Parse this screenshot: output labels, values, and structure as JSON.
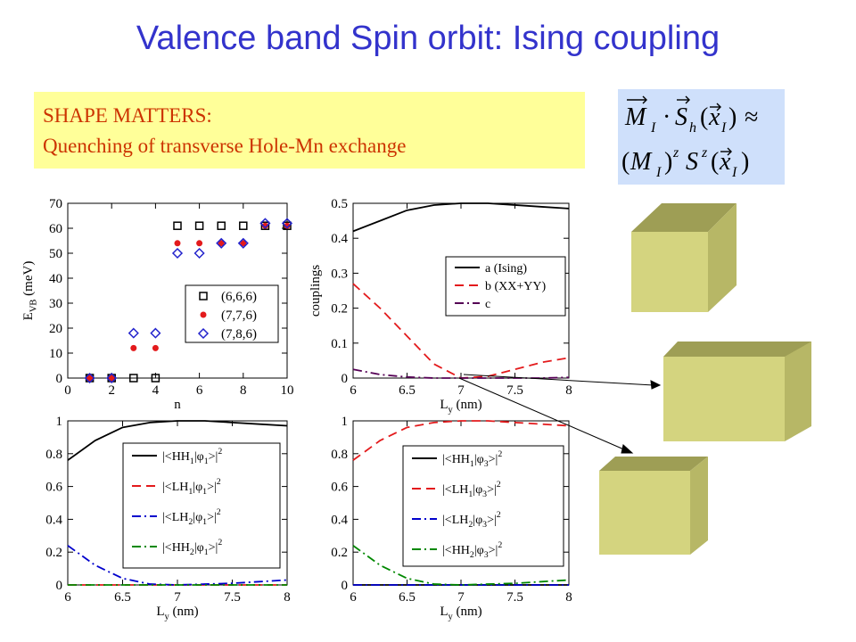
{
  "title": "Valence band Spin orbit: Ising coupling",
  "note": {
    "line1": "SHAPE MATTERS:",
    "line2": "Quenching of transverse Hole-Mn exchange"
  },
  "formula": {
    "line1": "M_I · S_h(x_I) ≈",
    "line2": "(M_I)^z S^z(x_I)"
  },
  "colors": {
    "title": "#3333cc",
    "note_text": "#cc3300",
    "note_bg": "#ffff99",
    "formula_bg": "#cfe0fb",
    "cube": "#d4d47f"
  },
  "chart_data": [
    {
      "type": "scatter",
      "xlabel": "n",
      "ylabel": "E_VB (meV)",
      "xlim": [
        0,
        10
      ],
      "ylim": [
        0,
        70
      ],
      "xticks": [
        0,
        2,
        4,
        6,
        8,
        10
      ],
      "yticks": [
        0,
        10,
        20,
        30,
        40,
        50,
        60,
        70
      ],
      "legend_position": "lower-right",
      "series": [
        {
          "name": "(6,6,6)",
          "marker": "open-square",
          "color": "#000000",
          "x": [
            1,
            2,
            3,
            4,
            5,
            6,
            7,
            8,
            9,
            10
          ],
          "y": [
            0,
            0,
            0,
            0,
            61,
            61,
            61,
            61,
            61,
            61
          ]
        },
        {
          "name": "(7,7,6)",
          "marker": "filled-circle",
          "color": "#e31a1c",
          "x": [
            1,
            2,
            3,
            4,
            5,
            6,
            7,
            8,
            9,
            10
          ],
          "y": [
            0,
            0,
            12,
            12,
            54,
            54,
            54,
            54,
            61,
            61
          ]
        },
        {
          "name": "(7,8,6)",
          "marker": "open-diamond",
          "color": "#2222cc",
          "x": [
            1,
            2,
            3,
            4,
            5,
            6,
            7,
            8,
            9,
            10
          ],
          "y": [
            0,
            0,
            18,
            18,
            50,
            50,
            54,
            54,
            62,
            62
          ]
        }
      ]
    },
    {
      "type": "line",
      "xlabel": "L_y (nm)",
      "ylabel": "couplings",
      "xlim": [
        6,
        8
      ],
      "ylim": [
        0,
        0.5
      ],
      "xticks": [
        6,
        6.5,
        7,
        7.5,
        8
      ],
      "yticks": [
        0,
        0.1,
        0.2,
        0.3,
        0.4,
        0.5
      ],
      "legend_position": "middle-right",
      "x": [
        6,
        6.25,
        6.5,
        6.75,
        7,
        7.25,
        7.5,
        7.75,
        8
      ],
      "series": [
        {
          "name": "a (Ising)",
          "style": "solid",
          "color": "#000000",
          "values": [
            0.42,
            0.45,
            0.48,
            0.495,
            0.5,
            0.5,
            0.495,
            0.49,
            0.485
          ]
        },
        {
          "name": "b (XX+YY)",
          "style": "dashed",
          "color": "#e31a1c",
          "values": [
            0.27,
            0.2,
            0.12,
            0.04,
            0.0,
            0.005,
            0.025,
            0.045,
            0.058
          ]
        },
        {
          "name": "c",
          "style": "dash-dot",
          "color": "#550055",
          "values": [
            0.025,
            0.01,
            0.003,
            0.0,
            0.0,
            0.0,
            0.0,
            0.0,
            0.002
          ]
        }
      ]
    },
    {
      "type": "line",
      "xlabel": "L_y (nm)",
      "ylabel": "",
      "xlim": [
        6,
        8
      ],
      "ylim": [
        0,
        1
      ],
      "xticks": [
        6,
        6.5,
        7,
        7.5,
        8
      ],
      "yticks": [
        0,
        0.2,
        0.4,
        0.6,
        0.8,
        1
      ],
      "legend_position": "right",
      "x": [
        6,
        6.25,
        6.5,
        6.75,
        7,
        7.25,
        7.5,
        7.75,
        8
      ],
      "series": [
        {
          "name": "|<HH1|φ1>|²",
          "style": "solid",
          "color": "#000000",
          "values": [
            0.76,
            0.88,
            0.96,
            0.99,
            1.0,
            1.0,
            0.99,
            0.98,
            0.97
          ]
        },
        {
          "name": "|<LH1|φ1>|²",
          "style": "dashed",
          "color": "#e31a1c",
          "values": [
            0.0,
            0.0,
            0.0,
            0.0,
            0.0,
            0.0,
            0.0,
            0.0,
            0.0
          ]
        },
        {
          "name": "|<LH2|φ1>|²",
          "style": "dash-dot",
          "color": "#0000cc",
          "values": [
            0.24,
            0.12,
            0.04,
            0.005,
            0.0,
            0.005,
            0.01,
            0.02,
            0.03
          ]
        },
        {
          "name": "|<HH2|φ1>|²",
          "style": "dash-dot",
          "color": "#008800",
          "values": [
            0.0,
            0.0,
            0.0,
            0.0,
            0.0,
            0.0,
            0.0,
            0.0,
            0.0
          ]
        }
      ]
    },
    {
      "type": "line",
      "xlabel": "L_y (nm)",
      "ylabel": "",
      "xlim": [
        6,
        8
      ],
      "ylim": [
        0,
        1
      ],
      "xticks": [
        6,
        6.5,
        7,
        7.5,
        8
      ],
      "yticks": [
        0,
        0.2,
        0.4,
        0.6,
        0.8,
        1
      ],
      "legend_position": "right",
      "x": [
        6,
        6.25,
        6.5,
        6.75,
        7,
        7.25,
        7.5,
        7.75,
        8
      ],
      "series": [
        {
          "name": "|<HH1|φ3>|²",
          "style": "solid",
          "color": "#000000",
          "values": [
            0.0,
            0.0,
            0.0,
            0.0,
            0.0,
            0.0,
            0.0,
            0.0,
            0.0
          ]
        },
        {
          "name": "|<LH1|φ3>|²",
          "style": "dashed",
          "color": "#e31a1c",
          "values": [
            0.76,
            0.88,
            0.96,
            0.99,
            1.0,
            1.0,
            0.99,
            0.98,
            0.97
          ]
        },
        {
          "name": "|<LH2|φ3>|²",
          "style": "dash-dot",
          "color": "#0000cc",
          "values": [
            0.0,
            0.0,
            0.0,
            0.0,
            0.0,
            0.0,
            0.0,
            0.0,
            0.0
          ]
        },
        {
          "name": "|<HH2|φ3>|²",
          "style": "dash-dot",
          "color": "#008800",
          "values": [
            0.24,
            0.12,
            0.04,
            0.005,
            0.0,
            0.005,
            0.01,
            0.02,
            0.03
          ]
        }
      ]
    }
  ]
}
